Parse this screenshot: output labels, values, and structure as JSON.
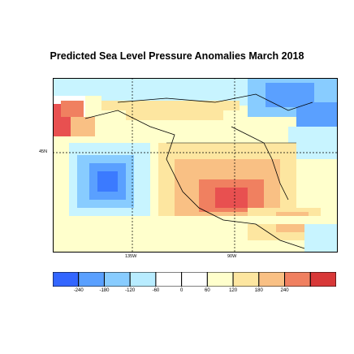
{
  "title": "Predicted Sea Level Pressure Anomalies March 2018",
  "map": {
    "lat_label": "45N",
    "lon_labels": [
      "135W",
      "90W"
    ]
  },
  "colorbar": {
    "ticks": [
      "-240",
      "-180",
      "-120",
      "-60",
      "0",
      "60",
      "120",
      "180",
      "240"
    ],
    "colors": [
      "#3366ff",
      "#5aa0ff",
      "#88ccff",
      "#b8ecff",
      "#ffffff",
      "#ffffff",
      "#ffffcc",
      "#fde6a0",
      "#f9c084",
      "#f08060",
      "#d83838"
    ]
  }
}
